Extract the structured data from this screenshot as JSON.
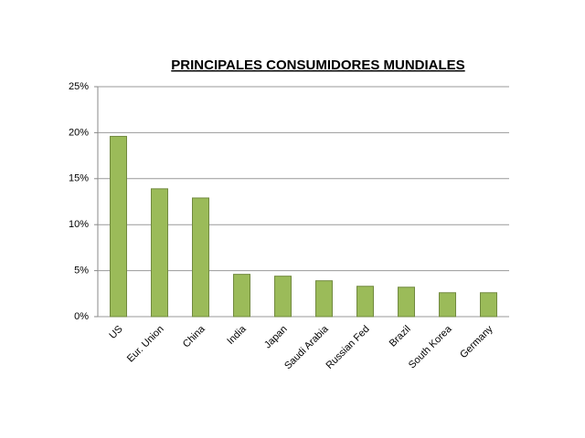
{
  "chart_data": {
    "type": "bar",
    "title": "PRINCIPALES CONSUMIDORES MUNDIALES",
    "categories": [
      "US",
      "Eur. Union",
      "China",
      "India",
      "Japan",
      "Saudi Arabia",
      "Russian Fed",
      "Brazil",
      "South Korea",
      "Germany"
    ],
    "values": [
      19.6,
      13.9,
      12.9,
      4.6,
      4.4,
      3.9,
      3.3,
      3.2,
      2.6,
      2.6
    ],
    "color": "#9bbb59",
    "ylim": [
      0,
      25
    ],
    "yticks": [
      {
        "value": 0,
        "label": "0%"
      },
      {
        "value": 5,
        "label": "5%"
      },
      {
        "value": 10,
        "label": "10%"
      },
      {
        "value": 15,
        "label": "15%"
      },
      {
        "value": 20,
        "label": "20%"
      },
      {
        "value": 25,
        "label": "25%"
      }
    ],
    "grid": true
  }
}
